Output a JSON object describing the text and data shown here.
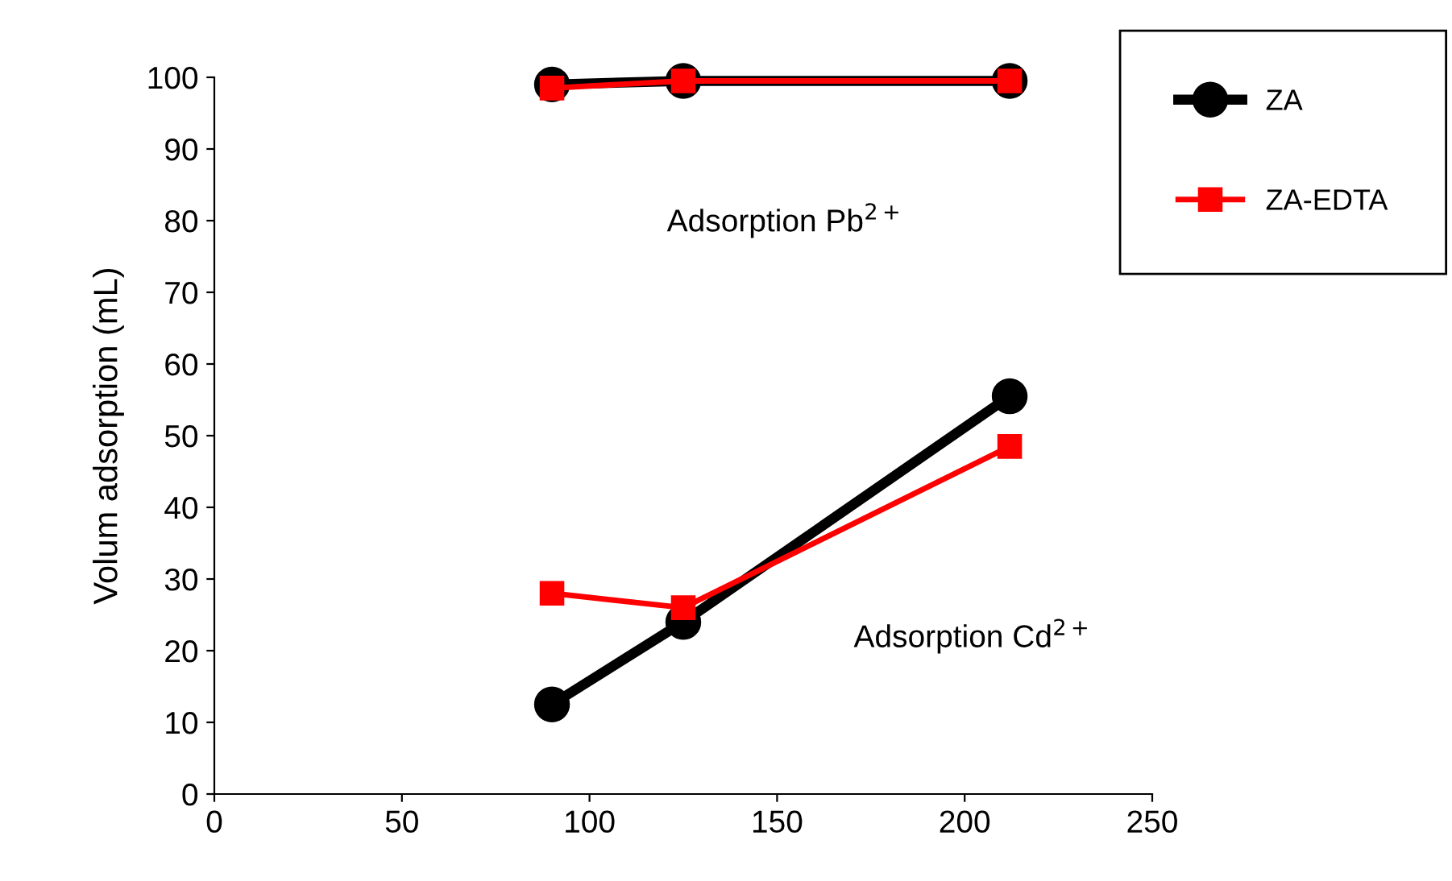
{
  "chart_data": {
    "type": "line",
    "ylabel": "Volum adsorption (mL)",
    "xlim": [
      0,
      250
    ],
    "xticks": [
      0,
      50,
      100,
      150,
      200,
      250
    ],
    "ylim": [
      0,
      100
    ],
    "yticks": [
      0,
      10,
      20,
      30,
      40,
      50,
      60,
      70,
      80,
      90,
      100
    ],
    "grid": false,
    "legend": "right",
    "line_style": "solid",
    "series": [
      {
        "name": "ZA",
        "color": "#000000",
        "marker": "circle",
        "x": [
          90,
          125,
          212
        ],
        "values": [
          99,
          99.5,
          99.5
        ]
      },
      {
        "name": "ZA-EDTA",
        "color": "#ff0000",
        "marker": "square",
        "x": [
          90,
          125,
          212
        ],
        "values": [
          98.5,
          99.5,
          99.5
        ]
      },
      {
        "color": "#000000",
        "marker": "circle",
        "x": [
          90,
          125,
          212
        ],
        "values": [
          12.5,
          24,
          55.5
        ]
      },
      {
        "color": "#ff0000",
        "marker": "square",
        "x": [
          90,
          125,
          212
        ],
        "values": [
          28,
          26,
          48.5
        ]
      }
    ],
    "annotations": [
      "Adsorption Pb$^{2+}$",
      "Adsorption Cd$^{2+}$"
    ]
  }
}
